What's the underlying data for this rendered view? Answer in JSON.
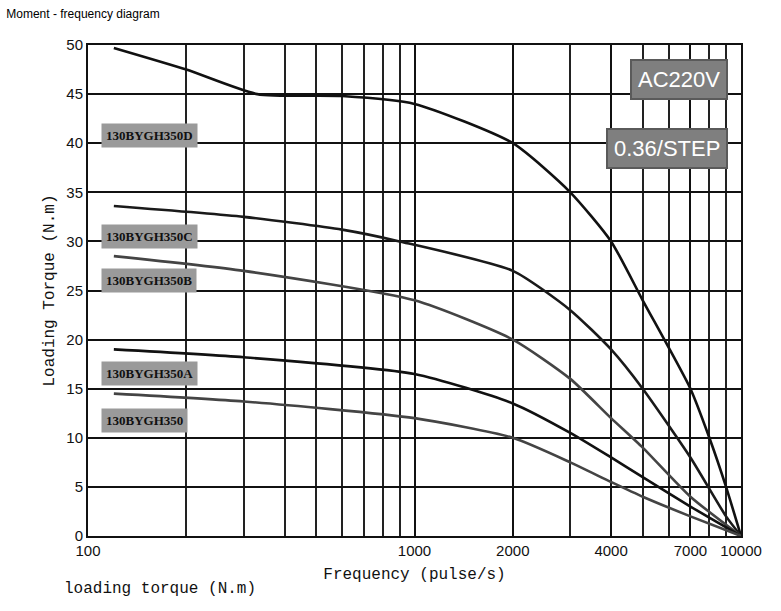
{
  "chart_data": {
    "type": "line",
    "title": "Moment - frequency diagram",
    "xlabel": "Frequency (pulse/s)",
    "ylabel": "Loading Torque (N.m)",
    "annotations": [
      {
        "text": "loading torque (N.m)"
      },
      {
        "text": "AC220V"
      },
      {
        "text": "0.36/STEP"
      }
    ],
    "log": "x",
    "grid": true,
    "xlim": [
      100,
      10000
    ],
    "xticks": [
      100,
      1000,
      2000,
      4000,
      7000,
      10000
    ],
    "ylim": [
      0,
      50
    ],
    "yticks": [
      0,
      5,
      10,
      15,
      20,
      25,
      30,
      35,
      40,
      45,
      50
    ],
    "series": [
      {
        "name": "130BYGH350D",
        "color": "#111111",
        "line_style": "solid",
        "x": [
          120,
          200,
          330,
          600,
          1000,
          2000,
          3000,
          4000,
          5000,
          7000,
          8000,
          9000,
          10000
        ],
        "values": [
          49.7,
          47.5,
          45,
          44.8,
          44,
          40,
          35,
          30,
          24,
          15,
          10,
          5,
          0
        ]
      },
      {
        "name": "130BYGH350C",
        "color": "#1a1a1a",
        "line_style": "solid",
        "x": [
          120,
          300,
          600,
          900,
          2000,
          3000,
          4000,
          5000,
          7000,
          9000,
          10000
        ],
        "values": [
          33.6,
          32.5,
          31.2,
          30,
          27,
          23,
          19,
          15,
          8,
          2,
          0
        ]
      },
      {
        "name": "130BYGH350B",
        "color": "#444444",
        "line_style": "solid",
        "x": [
          120,
          300,
          1000,
          2000,
          3000,
          4000,
          5000,
          7000,
          10000
        ],
        "values": [
          28.5,
          27,
          24,
          20,
          16,
          12,
          9,
          4,
          0
        ]
      },
      {
        "name": "130BYGH350A",
        "color": "#111111",
        "line_style": "solid",
        "x": [
          120,
          300,
          1000,
          2000,
          3000,
          4000,
          5000,
          7000,
          10000
        ],
        "values": [
          19,
          18.2,
          16.5,
          13.5,
          10.5,
          8,
          6,
          3,
          0
        ]
      },
      {
        "name": "130BYGH350",
        "color": "#444444",
        "line_style": "solid",
        "x": [
          120,
          300,
          1000,
          2000,
          3000,
          4000,
          5000,
          7000,
          10000
        ],
        "values": [
          14.5,
          13.7,
          12,
          10,
          7.5,
          5.5,
          4,
          2,
          0
        ]
      }
    ]
  }
}
